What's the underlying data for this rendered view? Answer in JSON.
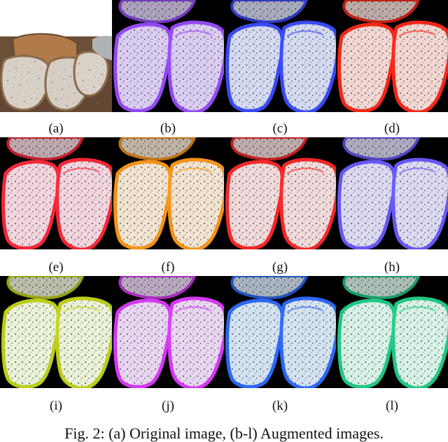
{
  "figure": {
    "panels": [
      {
        "label": "(a)",
        "style": "original",
        "edge": "#8a6a4a"
      },
      {
        "label": "(b)",
        "style": "aug",
        "edge": "#9b4dff",
        "tint": "#e7d9ff"
      },
      {
        "label": "(c)",
        "style": "aug",
        "edge": "#3d4dff",
        "tint": "#dfe6ff"
      },
      {
        "label": "(d)",
        "style": "aug",
        "edge": "#ff2a1a",
        "tint": "#ffe3df"
      },
      {
        "label": "(e)",
        "style": "aug",
        "edge": "#ff2a3a",
        "tint": "#ffe1ea"
      },
      {
        "label": "(f)",
        "style": "aug",
        "edge": "#ff9a1a",
        "tint": "#fff1dd"
      },
      {
        "label": "(g)",
        "style": "aug",
        "edge": "#ff2a2a",
        "tint": "#ffe6e6"
      },
      {
        "label": "(h)",
        "style": "aug",
        "edge": "#6b5cff",
        "tint": "#e8e6ff"
      },
      {
        "label": "(i)",
        "style": "aug",
        "edge": "#c6d81a",
        "tint": "#f7ffe3"
      },
      {
        "label": "(j)",
        "style": "aug",
        "edge": "#e03cff",
        "tint": "#f6e2ff"
      },
      {
        "label": "(k)",
        "style": "aug",
        "edge": "#2f6dff",
        "tint": "#e0f0ff"
      },
      {
        "label": "(l)",
        "style": "aug",
        "edge": "#23d18b",
        "tint": "#e3fff3"
      }
    ],
    "caption": "Fig. 2: (a) Original image, (b-l) Augmented images."
  }
}
